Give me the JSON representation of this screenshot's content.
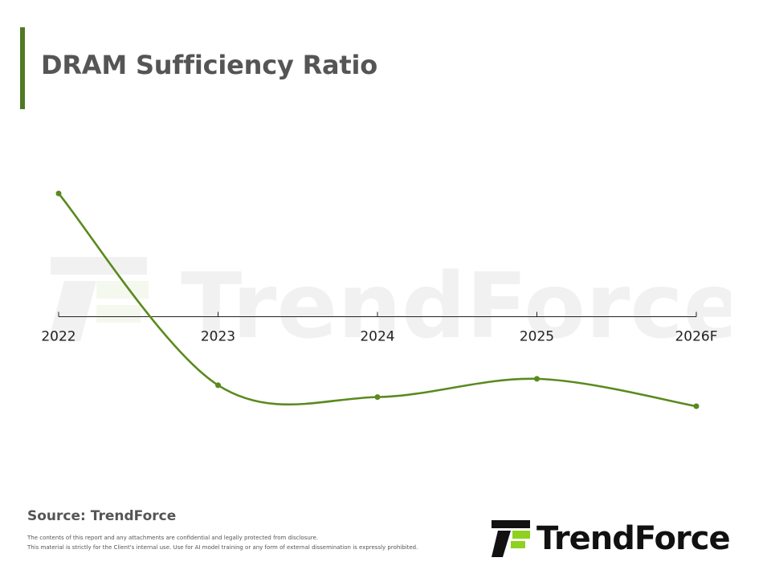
{
  "header": {
    "title": "DRAM Sufficiency Ratio"
  },
  "footer": {
    "source": "Source: TrendForce",
    "disclaimer_line1": "The contents of this report and any attachments are confidential and legally protected from disclosure.",
    "disclaimer_line2": "This material is strictly for the Client's internal use. Use for AI model training or any form of external dissemination is expressly prohibited.",
    "logo_text": "TrendForce"
  },
  "watermark": {
    "text": "TrendForce"
  },
  "colors": {
    "accent": "#4f7a21",
    "line": "#5a8a1e",
    "logo_green": "#8ed11f",
    "axis": "#222222"
  },
  "chart_data": {
    "type": "line",
    "title": "DRAM Sufficiency Ratio",
    "categories": [
      "2022",
      "2023",
      "2024",
      "2025",
      "2026F"
    ],
    "series": [
      {
        "values": [
          13.5,
          -7.5,
          -8.8,
          -6.8,
          -9.8
        ]
      }
    ],
    "ylim": [
      -25,
      30
    ],
    "smooth": true,
    "grid": false,
    "legend": "none",
    "y_axis_visible": false
  }
}
